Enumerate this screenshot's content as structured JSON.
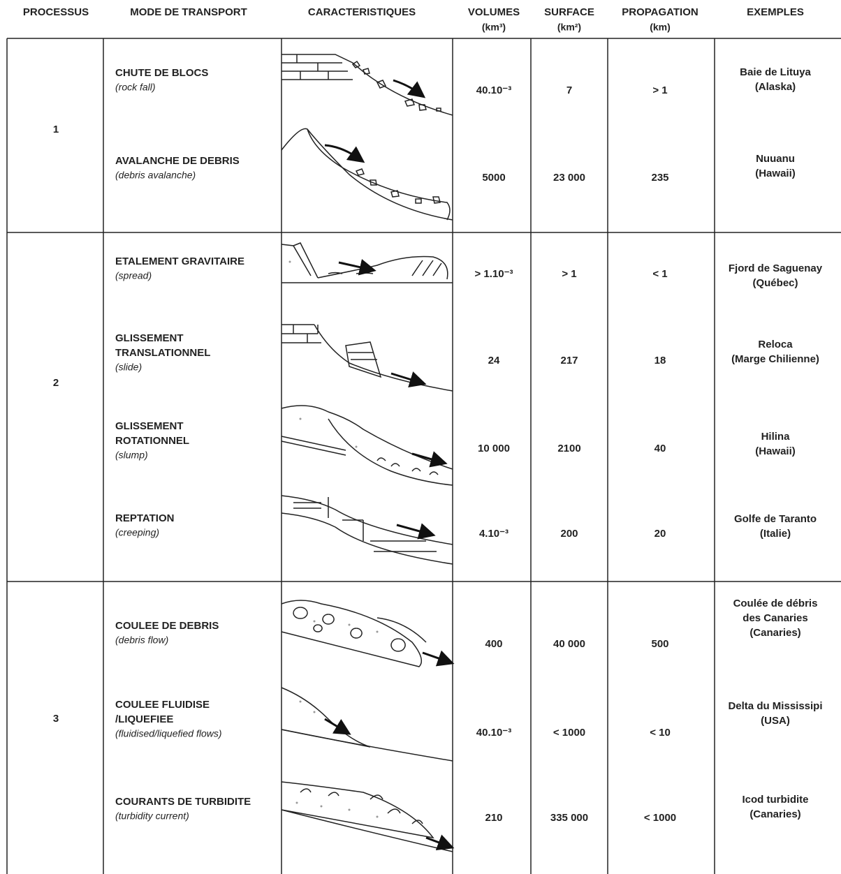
{
  "header": {
    "columns": [
      [
        "PROCESSUS"
      ],
      [
        "MODE DE TRANSPORT"
      ],
      [
        "CARACTERISTIQUES"
      ],
      [
        "VOLUMES",
        "(km³)"
      ],
      [
        "SURFACE",
        "(km²)"
      ],
      [
        "PROPAGATION",
        "(km)"
      ],
      [
        "EXEMPLES"
      ]
    ]
  },
  "groups": [
    {
      "process": "1",
      "rows": [
        {
          "mode": [
            "CHUTE DE BLOCS"
          ],
          "mode_en": "(rock fall)",
          "volume": "40.10⁻³",
          "surface": "7",
          "propagation": "> 1",
          "example": [
            "Baie de Lituya",
            "(Alaska)"
          ]
        },
        {
          "mode": [
            "AVALANCHE DE DEBRIS"
          ],
          "mode_en": "(debris avalanche)",
          "volume": "5000",
          "surface": "23 000",
          "propagation": "235",
          "example": [
            "Nuuanu",
            "(Hawaii)"
          ]
        }
      ]
    },
    {
      "process": "2",
      "rows": [
        {
          "mode": [
            "ETALEMENT GRAVITAIRE"
          ],
          "mode_en": "(spread)",
          "volume": "> 1.10⁻³",
          "surface": "> 1",
          "propagation": "< 1",
          "example": [
            "Fjord de Saguenay",
            "(Québec)"
          ]
        },
        {
          "mode": [
            "GLISSEMENT",
            "TRANSLATIONNEL"
          ],
          "mode_en": "(slide)",
          "volume": "24",
          "surface": "217",
          "propagation": "18",
          "example": [
            "Reloca",
            "(Marge Chilienne)"
          ]
        },
        {
          "mode": [
            "GLISSEMENT",
            "ROTATIONNEL"
          ],
          "mode_en": "(slump)",
          "volume": "10 000",
          "surface": "2100",
          "propagation": "40",
          "example": [
            "Hilina",
            "(Hawaii)"
          ]
        },
        {
          "mode": [
            "REPTATION"
          ],
          "mode_en": "(creeping)",
          "volume": "4.10⁻³",
          "surface": "200",
          "propagation": "20",
          "example": [
            "Golfe de Taranto",
            "(Italie)"
          ]
        }
      ]
    },
    {
      "process": "3",
      "rows": [
        {
          "mode": [
            "COULEE DE DEBRIS"
          ],
          "mode_en": "(debris flow)",
          "volume": "400",
          "surface": "40 000",
          "propagation": "500",
          "example": [
            "Coulée de débris",
            "des Canaries",
            "(Canaries)"
          ]
        },
        {
          "mode": [
            "COULEE FLUIDISE",
            "/LIQUEFIEE"
          ],
          "mode_en": "(fluidised/liquefied flows)",
          "volume": "40.10⁻³",
          "surface": "< 1000",
          "propagation": "< 10",
          "example": [
            "Delta du Mississipi",
            "(USA)"
          ]
        },
        {
          "mode": [
            "COURANTS DE TURBIDITE"
          ],
          "mode_en": "(turbidity current)",
          "volume": "210",
          "surface": "335 000",
          "propagation": "< 1000",
          "example": [
            "Icod turbidite",
            "(Canaries)"
          ]
        }
      ]
    }
  ]
}
